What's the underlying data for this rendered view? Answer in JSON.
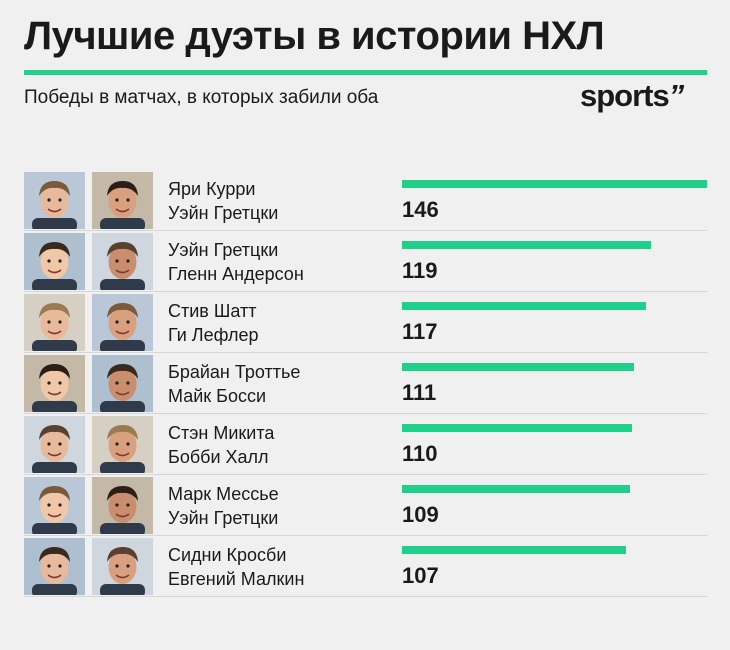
{
  "title": "Лучшие дуэты в истории НХЛ",
  "subtitle": "Победы в матчах, в которых забили оба",
  "logo_text": "sports",
  "logo_mark": "’’",
  "colors": {
    "accent": "#1fcf8a",
    "background": "#f0f0f0",
    "text": "#1a1a1a"
  },
  "chart_data": {
    "type": "bar",
    "orientation": "horizontal",
    "title": "Лучшие дуэты в истории НХЛ",
    "subtitle": "Победы в матчах, в которых забили оба",
    "xlim": [
      0,
      146
    ],
    "categories": [
      "Яри Курри / Уэйн Гретцки",
      "Уэйн Гретцки / Гленн Андерсон",
      "Стив Шатт / Ги Лефлер",
      "Брайан Троттье / Майк Босси",
      "Стэн Микита / Бобби Халл",
      "Марк Мессье / Уэйн Гретцки",
      "Сидни Кросби / Евгений Малкин"
    ],
    "values": [
      146,
      119,
      117,
      111,
      110,
      109,
      107
    ],
    "rows": [
      {
        "player1": "Яри Курри",
        "player2": "Уэйн Гретцки",
        "value": 146,
        "value_label": "146"
      },
      {
        "player1": "Уэйн Гретцки",
        "player2": "Гленн Андерсон",
        "value": 119,
        "value_label": "119"
      },
      {
        "player1": "Стив Шатт",
        "player2": "Ги Лефлер",
        "value": 117,
        "value_label": "117"
      },
      {
        "player1": "Брайан Троттье",
        "player2": "Майк Босси",
        "value": 111,
        "value_label": "111"
      },
      {
        "player1": "Стэн Микита",
        "player2": "Бобби Халл",
        "value": 110,
        "value_label": "110"
      },
      {
        "player1": "Марк Мессье",
        "player2": "Уэйн Гретцки",
        "value": 109,
        "value_label": "109"
      },
      {
        "player1": "Сидни Кросби",
        "player2": "Евгений Малкин",
        "value": 107,
        "value_label": "107"
      }
    ]
  }
}
